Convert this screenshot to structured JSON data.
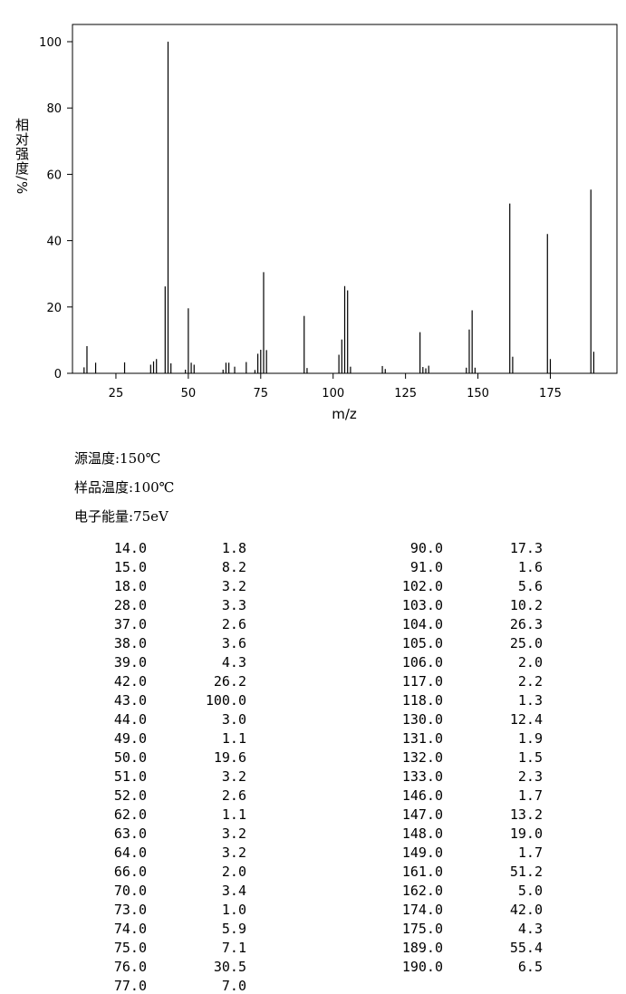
{
  "chart_data": {
    "type": "bar",
    "y_label": "相对强度/%",
    "x_label": "m/z",
    "x": [
      14,
      15,
      18,
      28,
      37,
      38,
      39,
      42,
      43,
      44,
      49,
      50,
      51,
      52,
      62,
      63,
      64,
      66,
      70,
      73,
      74,
      75,
      76,
      77,
      90,
      91,
      102,
      103,
      104,
      105,
      106,
      117,
      118,
      130,
      131,
      132,
      133,
      146,
      147,
      148,
      149,
      161,
      162,
      174,
      175,
      189,
      190
    ],
    "values": [
      1.8,
      8.2,
      3.2,
      3.3,
      2.6,
      3.6,
      4.3,
      26.2,
      100,
      3.0,
      1.1,
      19.6,
      3.2,
      2.6,
      1.1,
      3.2,
      3.2,
      2.0,
      3.4,
      1.0,
      5.9,
      7.1,
      30.5,
      7.0,
      17.3,
      1.6,
      5.6,
      10.2,
      26.3,
      25.0,
      2.0,
      2.2,
      1.3,
      12.4,
      1.9,
      1.5,
      2.3,
      1.7,
      13.2,
      19.0,
      1.7,
      51.2,
      5.0,
      42.0,
      4.3,
      55.4,
      6.5
    ],
    "color": "#000000",
    "xlim": [
      10,
      198
    ],
    "xticks": [
      25,
      50,
      75,
      100,
      125,
      150,
      175
    ],
    "ylim": [
      0,
      100
    ],
    "yticks": [
      0,
      20,
      40,
      60,
      80,
      100
    ]
  },
  "info": [
    "源温度:150℃",
    "样品温度:100℃",
    "电子能量:75eV"
  ],
  "table": {
    "left": [
      [
        "14.0",
        "1.8"
      ],
      [
        "15.0",
        "8.2"
      ],
      [
        "18.0",
        "3.2"
      ],
      [
        "28.0",
        "3.3"
      ],
      [
        "37.0",
        "2.6"
      ],
      [
        "38.0",
        "3.6"
      ],
      [
        "39.0",
        "4.3"
      ],
      [
        "42.0",
        "26.2"
      ],
      [
        "43.0",
        "100.0"
      ],
      [
        "44.0",
        "3.0"
      ],
      [
        "49.0",
        "1.1"
      ],
      [
        "50.0",
        "19.6"
      ],
      [
        "51.0",
        "3.2"
      ],
      [
        "52.0",
        "2.6"
      ],
      [
        "62.0",
        "1.1"
      ],
      [
        "63.0",
        "3.2"
      ],
      [
        "64.0",
        "3.2"
      ],
      [
        "66.0",
        "2.0"
      ],
      [
        "70.0",
        "3.4"
      ],
      [
        "73.0",
        "1.0"
      ],
      [
        "74.0",
        "5.9"
      ],
      [
        "75.0",
        "7.1"
      ],
      [
        "76.0",
        "30.5"
      ],
      [
        "77.0",
        "7.0"
      ]
    ],
    "right": [
      [
        "90.0",
        "17.3"
      ],
      [
        "91.0",
        "1.6"
      ],
      [
        "102.0",
        "5.6"
      ],
      [
        "103.0",
        "10.2"
      ],
      [
        "104.0",
        "26.3"
      ],
      [
        "105.0",
        "25.0"
      ],
      [
        "106.0",
        "2.0"
      ],
      [
        "117.0",
        "2.2"
      ],
      [
        "118.0",
        "1.3"
      ],
      [
        "130.0",
        "12.4"
      ],
      [
        "131.0",
        "1.9"
      ],
      [
        "132.0",
        "1.5"
      ],
      [
        "133.0",
        "2.3"
      ],
      [
        "146.0",
        "1.7"
      ],
      [
        "147.0",
        "13.2"
      ],
      [
        "148.0",
        "19.0"
      ],
      [
        "149.0",
        "1.7"
      ],
      [
        "161.0",
        "51.2"
      ],
      [
        "162.0",
        "5.0"
      ],
      [
        "174.0",
        "42.0"
      ],
      [
        "175.0",
        "4.3"
      ],
      [
        "189.0",
        "55.4"
      ],
      [
        "190.0",
        "6.5"
      ]
    ]
  }
}
